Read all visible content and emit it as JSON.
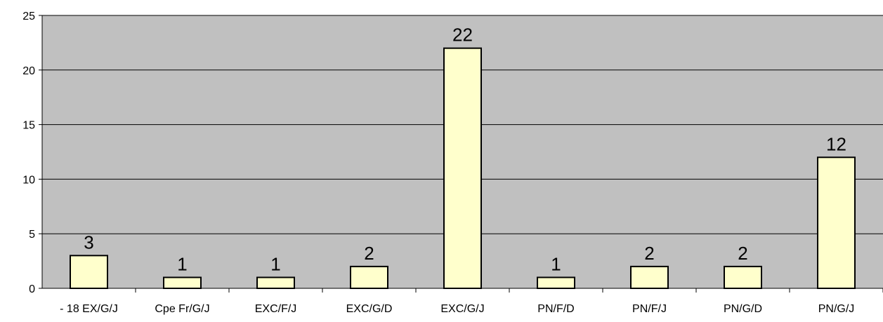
{
  "chart_data": {
    "type": "bar",
    "categories": [
      "- 18 EX/G/J",
      "Cpe Fr/G/J",
      "EXC/F/J",
      "EXC/G/D",
      "EXC/G/J",
      "PN/F/D",
      "PN/F/J",
      "PN/G/D",
      "PN/G/J"
    ],
    "values": [
      3,
      1,
      1,
      2,
      22,
      1,
      2,
      2,
      12
    ],
    "data_labels": [
      "3",
      "1",
      "1",
      "2",
      "22",
      "1",
      "2",
      "2",
      "12"
    ],
    "y_ticks": [
      "0",
      "5",
      "10",
      "15",
      "20",
      "25"
    ],
    "title": "",
    "xlabel": "",
    "ylabel": "",
    "ylim": [
      0,
      25
    ],
    "grid": true,
    "legend": "none",
    "colors": {
      "plot_background": "#c0c0c0",
      "bar_fill": "#ffffcc",
      "bar_stroke": "#000000",
      "gridline": "#000000"
    }
  }
}
